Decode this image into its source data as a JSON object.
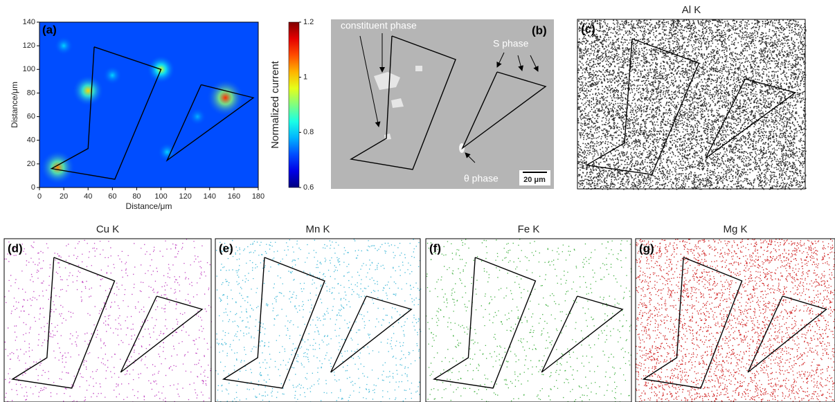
{
  "chart_data": {
    "type": "heatmap",
    "label": "(a)",
    "xlabel": "Distance/μm",
    "ylabel": "Distance/μm",
    "xlim": [
      0,
      180
    ],
    "xticks": [
      0,
      20,
      40,
      60,
      80,
      100,
      120,
      140,
      160,
      180
    ],
    "ylim": [
      0,
      140
    ],
    "yticks": [
      0,
      20,
      40,
      60,
      80,
      100,
      120,
      140
    ],
    "background_value": 0.72,
    "hotspots": {
      "x": [
        15,
        40,
        100,
        153,
        20,
        60,
        130,
        105
      ],
      "y": [
        17,
        82,
        100,
        76,
        120,
        95,
        60,
        30
      ],
      "values": [
        1.05,
        1.0,
        0.95,
        1.1,
        0.8,
        0.8,
        0.78,
        0.8
      ]
    },
    "colorbar": {
      "label": "Normalized current",
      "lim": [
        0.6,
        1.2
      ],
      "ticks": [
        0.6,
        0.8,
        1,
        1.2
      ]
    }
  },
  "panels": [
    {
      "label": "(b)",
      "annotations": [
        "constituent phase",
        "S phase",
        "θ phase",
        "20 μm"
      ]
    },
    {
      "label": "(c)",
      "title": "Al K",
      "color": "#333333"
    },
    {
      "label": "(d)",
      "title": "Cu K",
      "color": "#c040c0"
    },
    {
      "label": "(e)",
      "title": "Mn K",
      "color": "#40b8d8"
    },
    {
      "label": "(f)",
      "title": "Fe K",
      "color": "#40b040"
    },
    {
      "label": "(g)",
      "title": "Mg K",
      "color": "#d02020"
    }
  ]
}
